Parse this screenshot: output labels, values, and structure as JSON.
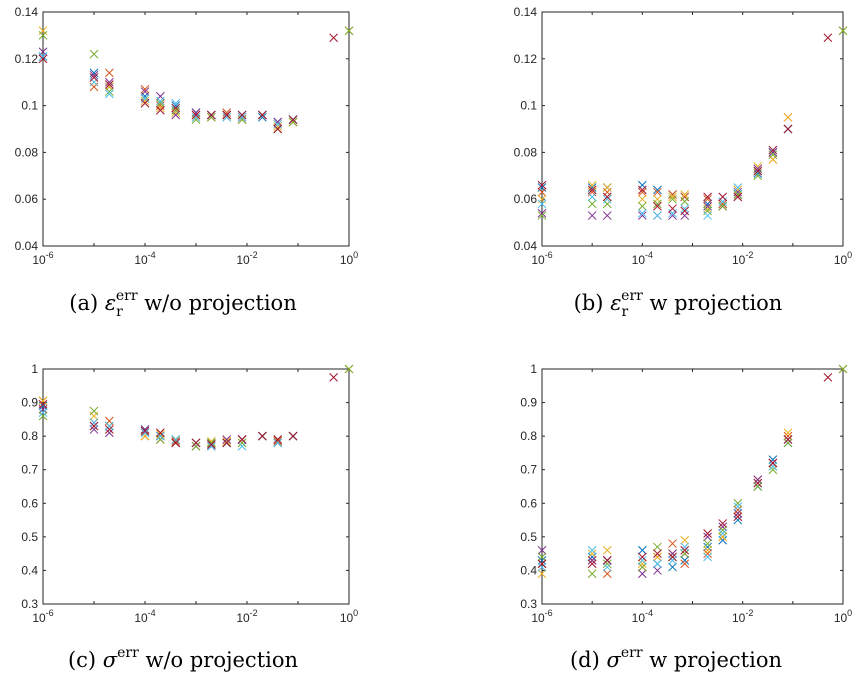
{
  "colors": [
    "#0072BD",
    "#D95319",
    "#EDB120",
    "#7E2F8E",
    "#77AC30",
    "#4DBEEE",
    "#A2142F"
  ],
  "chart_data": [
    {
      "type": "scatter",
      "caption": {
        "label": "(a)",
        "symbol": "ε",
        "sub": "r",
        "sup": "err",
        "rest": "w/o projection"
      },
      "xscale": "log",
      "xlim": [
        1e-06,
        1
      ],
      "ylim": [
        0.04,
        0.14
      ],
      "xticks": [
        {
          "base": "10",
          "exp": "-6"
        },
        {
          "base": "10",
          "exp": "-4"
        },
        {
          "base": "10",
          "exp": "-2"
        },
        {
          "base": "10",
          "exp": "0"
        }
      ],
      "yticks": [
        "0.04",
        "0.06",
        "0.08",
        "0.1",
        "0.12",
        "0.14"
      ],
      "yticks_values": [
        0.04,
        0.06,
        0.08,
        0.1,
        0.12,
        0.14
      ],
      "x": [
        1e-06,
        1e-05,
        2e-05,
        0.0001,
        0.0002,
        0.0004,
        0.001,
        0.002,
        0.004,
        0.008,
        0.02,
        0.04,
        0.08
      ],
      "series": [
        {
          "values": [
            0.121,
            0.114,
            0.108,
            0.104,
            0.101,
            0.1,
            0.097,
            0.096,
            0.096,
            0.096,
            0.095,
            0.093,
            0.094
          ]
        },
        {
          "values": [
            0.12,
            0.108,
            0.114,
            0.107,
            0.1,
            0.098,
            0.096,
            0.095,
            0.097,
            0.094,
            0.096,
            0.092,
            0.093
          ]
        },
        {
          "values": [
            0.132,
            0.11,
            0.108,
            0.102,
            0.099,
            0.097,
            0.095,
            0.096,
            0.096,
            0.095,
            0.096,
            0.091,
            0.093
          ]
        },
        {
          "values": [
            0.123,
            0.113,
            0.11,
            0.106,
            0.104,
            0.096,
            0.097,
            0.096,
            0.096,
            0.095,
            0.096,
            0.093,
            0.094
          ]
        },
        {
          "values": [
            0.13,
            0.122,
            0.106,
            0.103,
            0.101,
            0.098,
            0.094,
            0.095,
            0.095,
            0.094,
            0.096,
            0.09,
            0.093
          ]
        },
        {
          "values": [
            0.121,
            0.11,
            0.105,
            0.103,
            0.102,
            0.101,
            0.095,
            0.096,
            0.095,
            0.095,
            0.096,
            0.092,
            0.094
          ]
        },
        {
          "values": [
            0.12,
            0.112,
            0.109,
            0.101,
            0.098,
            0.099,
            0.096,
            0.096,
            0.096,
            0.096,
            0.096,
            0.09,
            0.094
          ]
        }
      ],
      "extra": [
        {
          "x": 0.5,
          "y": 0.129,
          "c": 6
        },
        {
          "x": 1,
          "y": 0.132,
          "c": 2
        },
        {
          "x": 1,
          "y": 0.132,
          "c": 4
        }
      ]
    },
    {
      "type": "scatter",
      "caption": {
        "label": "(b)",
        "symbol": "ε",
        "sub": "r",
        "sup": "err",
        "rest": "w projection"
      },
      "xscale": "log",
      "xlim": [
        1e-06,
        1
      ],
      "ylim": [
        0.04,
        0.14
      ],
      "xticks": [
        {
          "base": "10",
          "exp": "-6"
        },
        {
          "base": "10",
          "exp": "-4"
        },
        {
          "base": "10",
          "exp": "-2"
        },
        {
          "base": "10",
          "exp": "0"
        }
      ],
      "yticks": [
        "0.04",
        "0.06",
        "0.08",
        "0.1",
        "0.12",
        "0.14"
      ],
      "yticks_values": [
        0.04,
        0.06,
        0.08,
        0.1,
        0.12,
        0.14
      ],
      "x": [
        1e-06,
        1e-05,
        2e-05,
        0.0001,
        0.0002,
        0.0004,
        0.0007,
        0.002,
        0.004,
        0.008,
        0.02,
        0.04,
        0.08
      ],
      "series": [
        {
          "values": [
            0.065,
            0.065,
            0.065,
            0.066,
            0.064,
            0.062,
            0.061,
            0.058,
            0.058,
            0.062,
            0.071,
            0.08,
            0.09
          ]
        },
        {
          "values": [
            0.063,
            0.063,
            0.063,
            0.063,
            0.063,
            0.062,
            0.061,
            0.06,
            0.058,
            0.061,
            0.072,
            0.077,
            0.095
          ]
        },
        {
          "values": [
            0.06,
            0.066,
            0.065,
            0.06,
            0.06,
            0.061,
            0.062,
            0.056,
            0.057,
            0.064,
            0.074,
            0.077,
            0.095
          ]
        },
        {
          "values": [
            0.054,
            0.053,
            0.053,
            0.053,
            0.053,
            0.053,
            0.053,
            0.057,
            0.057,
            0.063,
            0.073,
            0.08,
            0.09
          ]
        },
        {
          "values": [
            0.053,
            0.058,
            0.058,
            0.057,
            0.058,
            0.06,
            0.059,
            0.055,
            0.057,
            0.062,
            0.07,
            0.079,
            0.09
          ]
        },
        {
          "values": [
            0.058,
            0.061,
            0.06,
            0.054,
            0.053,
            0.054,
            0.056,
            0.053,
            0.059,
            0.065,
            0.072,
            0.081,
            0.09
          ]
        },
        {
          "values": [
            0.066,
            0.064,
            0.061,
            0.064,
            0.057,
            0.056,
            0.055,
            0.061,
            0.061,
            0.061,
            0.072,
            0.081,
            0.09
          ]
        }
      ],
      "extra": [
        {
          "x": 0.5,
          "y": 0.129,
          "c": 6
        },
        {
          "x": 1,
          "y": 0.132,
          "c": 2
        },
        {
          "x": 1,
          "y": 0.132,
          "c": 4
        }
      ]
    },
    {
      "type": "scatter",
      "caption": {
        "label": "(c)",
        "symbol": "σ",
        "sub": "",
        "sup": "err",
        "rest": "w/o projection"
      },
      "xscale": "log",
      "xlim": [
        1e-06,
        1
      ],
      "ylim": [
        0.3,
        1
      ],
      "xticks": [
        {
          "base": "10",
          "exp": "-6"
        },
        {
          "base": "10",
          "exp": "-4"
        },
        {
          "base": "10",
          "exp": "-2"
        },
        {
          "base": "10",
          "exp": "0"
        }
      ],
      "yticks": [
        "0.3",
        "0.4",
        "0.5",
        "0.6",
        "0.7",
        "0.8",
        "0.9",
        "1"
      ],
      "yticks_values": [
        0.3,
        0.4,
        0.5,
        0.6,
        0.7,
        0.8,
        0.9,
        1
      ],
      "x": [
        1e-06,
        1e-05,
        2e-05,
        0.0001,
        0.0002,
        0.0004,
        0.001,
        0.002,
        0.004,
        0.008,
        0.02,
        0.04,
        0.08
      ],
      "series": [
        {
          "values": [
            0.89,
            0.83,
            0.83,
            0.82,
            0.8,
            0.79,
            0.78,
            0.78,
            0.78,
            0.79,
            0.8,
            0.79,
            0.8
          ]
        },
        {
          "values": [
            0.905,
            0.84,
            0.845,
            0.8,
            0.79,
            0.785,
            0.78,
            0.775,
            0.78,
            0.79,
            0.8,
            0.785,
            0.8
          ]
        },
        {
          "values": [
            0.905,
            0.86,
            0.82,
            0.8,
            0.805,
            0.79,
            0.78,
            0.785,
            0.785,
            0.78,
            0.8,
            0.79,
            0.8
          ]
        },
        {
          "values": [
            0.88,
            0.82,
            0.81,
            0.82,
            0.8,
            0.78,
            0.77,
            0.77,
            0.79,
            0.79,
            0.8,
            0.78,
            0.8
          ]
        },
        {
          "values": [
            0.86,
            0.875,
            0.83,
            0.81,
            0.79,
            0.78,
            0.77,
            0.78,
            0.78,
            0.78,
            0.8,
            0.78,
            0.8
          ]
        },
        {
          "values": [
            0.87,
            0.84,
            0.83,
            0.81,
            0.8,
            0.79,
            0.78,
            0.77,
            0.78,
            0.77,
            0.8,
            0.78,
            0.8
          ]
        },
        {
          "values": [
            0.895,
            0.83,
            0.82,
            0.815,
            0.81,
            0.78,
            0.78,
            0.775,
            0.78,
            0.79,
            0.8,
            0.79,
            0.8
          ]
        }
      ],
      "extra": [
        {
          "x": 0.5,
          "y": 0.975,
          "c": 6
        },
        {
          "x": 1,
          "y": 1.0,
          "c": 2
        },
        {
          "x": 1,
          "y": 1.0,
          "c": 4
        }
      ]
    },
    {
      "type": "scatter",
      "caption": {
        "label": "(d)",
        "symbol": "σ",
        "sub": "",
        "sup": "err",
        "rest": "w projection"
      },
      "xscale": "log",
      "xlim": [
        1e-06,
        1
      ],
      "ylim": [
        0.3,
        1
      ],
      "xticks": [
        {
          "base": "10",
          "exp": "-6"
        },
        {
          "base": "10",
          "exp": "-4"
        },
        {
          "base": "10",
          "exp": "-2"
        },
        {
          "base": "10",
          "exp": "0"
        }
      ],
      "yticks": [
        "0.3",
        "0.4",
        "0.5",
        "0.6",
        "0.7",
        "0.8",
        "0.9",
        "1"
      ],
      "yticks_values": [
        0.3,
        0.4,
        0.5,
        0.6,
        0.7,
        0.8,
        0.9,
        1
      ],
      "x": [
        1e-06,
        1e-05,
        2e-05,
        0.0001,
        0.0002,
        0.0004,
        0.0007,
        0.002,
        0.004,
        0.008,
        0.02,
        0.04,
        0.08
      ],
      "series": [
        {
          "values": [
            0.43,
            0.44,
            0.43,
            0.46,
            0.42,
            0.41,
            0.43,
            0.47,
            0.49,
            0.55,
            0.65,
            0.73,
            0.78
          ]
        },
        {
          "values": [
            0.42,
            0.43,
            0.39,
            0.41,
            0.44,
            0.48,
            0.42,
            0.45,
            0.5,
            0.58,
            0.67,
            0.72,
            0.8
          ]
        },
        {
          "values": [
            0.39,
            0.45,
            0.46,
            0.42,
            0.44,
            0.45,
            0.49,
            0.46,
            0.5,
            0.57,
            0.66,
            0.71,
            0.81
          ]
        },
        {
          "values": [
            0.46,
            0.43,
            0.43,
            0.39,
            0.4,
            0.45,
            0.45,
            0.5,
            0.53,
            0.57,
            0.67,
            0.72,
            0.79
          ]
        },
        {
          "values": [
            0.44,
            0.39,
            0.42,
            0.41,
            0.47,
            0.44,
            0.45,
            0.48,
            0.52,
            0.6,
            0.65,
            0.7,
            0.78
          ]
        },
        {
          "values": [
            0.41,
            0.46,
            0.41,
            0.43,
            0.42,
            0.43,
            0.47,
            0.44,
            0.51,
            0.59,
            0.66,
            0.71,
            0.79
          ]
        },
        {
          "values": [
            0.42,
            0.42,
            0.43,
            0.44,
            0.45,
            0.44,
            0.46,
            0.51,
            0.54,
            0.56,
            0.66,
            0.72,
            0.79
          ]
        }
      ],
      "extra": [
        {
          "x": 0.5,
          "y": 0.975,
          "c": 6
        },
        {
          "x": 1,
          "y": 1.0,
          "c": 2
        },
        {
          "x": 1,
          "y": 1.0,
          "c": 4
        }
      ]
    }
  ]
}
